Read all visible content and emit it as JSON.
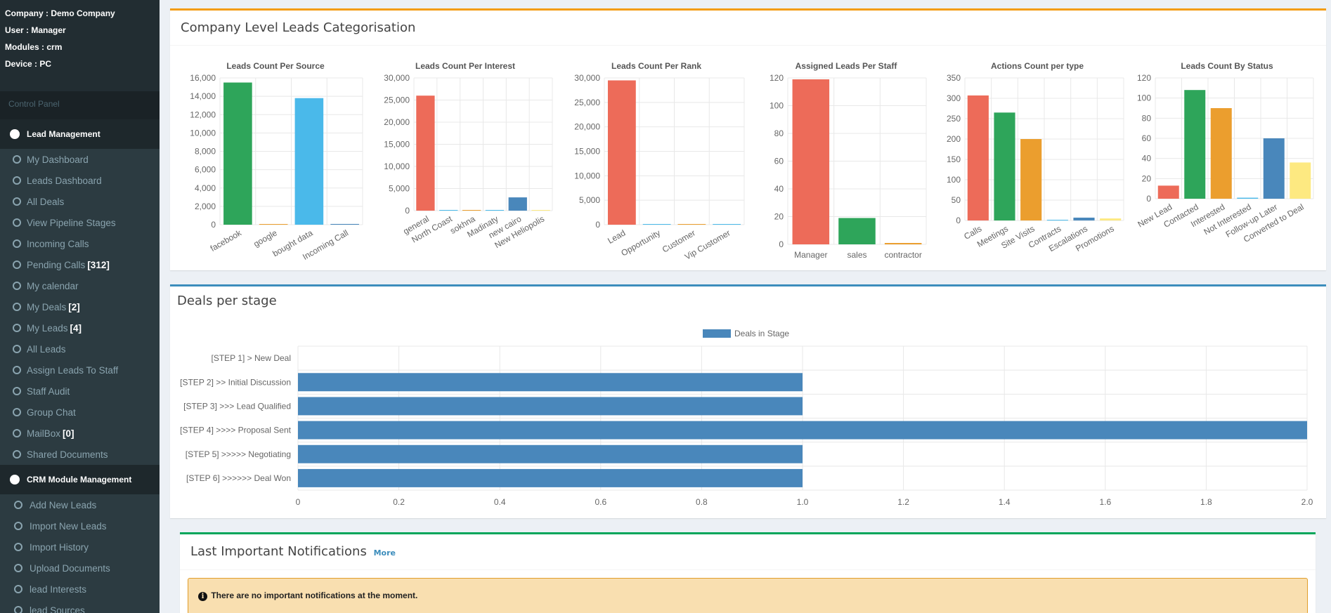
{
  "sidebar": {
    "info": [
      {
        "label": "Company : ",
        "value": "Demo Company"
      },
      {
        "label": "User : ",
        "value": "Manager"
      },
      {
        "label": "Modules : ",
        "value": "crm"
      },
      {
        "label": "Device : ",
        "value": "PC"
      }
    ],
    "header": "Control Panel",
    "section1": "Lead Management",
    "items1": [
      {
        "label": "My Dashboard",
        "badge": ""
      },
      {
        "label": "Leads Dashboard",
        "badge": ""
      },
      {
        "label": "All Deals",
        "badge": ""
      },
      {
        "label": "View Pipeline Stages",
        "badge": ""
      },
      {
        "label": "Incoming Calls",
        "badge": ""
      },
      {
        "label": "Pending Calls",
        "badge": "[312]"
      },
      {
        "label": "My calendar",
        "badge": ""
      },
      {
        "label": "My Deals",
        "badge": "[2]"
      },
      {
        "label": "My Leads",
        "badge": "[4]"
      },
      {
        "label": "All Leads",
        "badge": ""
      },
      {
        "label": "Assign Leads To Staff",
        "badge": ""
      },
      {
        "label": "Staff Audit",
        "badge": ""
      },
      {
        "label": "Group Chat",
        "badge": ""
      },
      {
        "label": "MailBox",
        "badge": "[0]"
      },
      {
        "label": "Shared Documents",
        "badge": ""
      }
    ],
    "section2": "CRM Module Management",
    "items2": [
      {
        "label": "Add New Leads"
      },
      {
        "label": "Import New Leads"
      },
      {
        "label": "Import History"
      },
      {
        "label": "Upload Documents"
      },
      {
        "label": "lead Interests"
      },
      {
        "label": "lead Sources"
      }
    ]
  },
  "leads_box": {
    "title": "Company Level Leads Categorisation"
  },
  "deals_box": {
    "title": "Deals per stage"
  },
  "notifications": {
    "title": "Last Important Notifications",
    "more": "More",
    "message": "There are no important notifications at the moment."
  },
  "colors": {
    "red": "#ed6b59",
    "green": "#2ea55a",
    "orange": "#eb9e2e",
    "blue": "#4987bb",
    "lightblue": "#4ab9ea",
    "yellow": "#fde981"
  },
  "chart_data": [
    {
      "type": "bar",
      "title": "Leads Count Per Source",
      "categories": [
        "facebook",
        "google",
        "bought data",
        "Incoming Call"
      ],
      "values": [
        15500,
        10,
        13800,
        80
      ],
      "colors": [
        "#2ea55a",
        "#eb9e2e",
        "#4ab9ea",
        "#4987bb"
      ],
      "yticks": [
        0,
        2000,
        4000,
        6000,
        8000,
        10000,
        12000,
        14000,
        16000
      ],
      "ylim": [
        0,
        16000
      ]
    },
    {
      "type": "bar",
      "title": "Leads Count Per Interest",
      "categories": [
        "general",
        "North Coast",
        "sokhna",
        "Madinaty",
        "new cairo",
        "New Heliopolis"
      ],
      "values": [
        26000,
        50,
        50,
        20,
        3000,
        10
      ],
      "colors": [
        "#ed6b59",
        "#4ab9ea",
        "#eb9e2e",
        "#4ab9ea",
        "#4987bb",
        "#fde981"
      ],
      "yticks": [
        0,
        5000,
        10000,
        15000,
        20000,
        25000,
        30000
      ],
      "ylim": [
        0,
        30000
      ]
    },
    {
      "type": "bar",
      "title": "Leads Count Per Rank",
      "categories": [
        "Lead",
        "Opportunity",
        "Customer",
        "Vip Customer"
      ],
      "values": [
        29500,
        30,
        30,
        30
      ],
      "colors": [
        "#ed6b59",
        "#4ab9ea",
        "#eb9e2e",
        "#4ab9ea"
      ],
      "yticks": [
        0,
        5000,
        10000,
        15000,
        20000,
        25000,
        30000
      ],
      "ylim": [
        0,
        30000
      ]
    },
    {
      "type": "bar",
      "title": "Assigned Leads Per Staff",
      "categories": [
        "Manager",
        "sales",
        "contractor"
      ],
      "values": [
        119,
        19,
        1
      ],
      "colors": [
        "#ed6b59",
        "#2ea55a",
        "#eb9e2e"
      ],
      "yticks": [
        0,
        20,
        40,
        60,
        80,
        100,
        120
      ],
      "ylim": [
        0,
        120
      ]
    },
    {
      "type": "bar",
      "title": "Actions Count per type",
      "categories": [
        "Calls",
        "Meetings",
        "Site Visits",
        "Contracts",
        "Escalations",
        "Promotions"
      ],
      "values": [
        307,
        265,
        200,
        0,
        7,
        5
      ],
      "colors": [
        "#ed6b59",
        "#2ea55a",
        "#eb9e2e",
        "#4ab9ea",
        "#4987bb",
        "#fde981"
      ],
      "yticks": [
        0,
        50,
        100,
        150,
        200,
        250,
        300,
        350
      ],
      "ylim": [
        0,
        350
      ]
    },
    {
      "type": "bar",
      "title": "Leads Count By Status",
      "categories": [
        "New Lead",
        "Contacted",
        "Interested",
        "Not Interested",
        "Follow-up Later",
        "Converted to Deal"
      ],
      "values": [
        13,
        108,
        90,
        1,
        60,
        36
      ],
      "colors": [
        "#ed6b59",
        "#2ea55a",
        "#eb9e2e",
        "#4ab9ea",
        "#4987bb",
        "#fde981"
      ],
      "yticks": [
        0,
        20,
        40,
        60,
        80,
        100,
        120
      ],
      "ylim": [
        0,
        120
      ]
    },
    {
      "type": "bar",
      "orientation": "horizontal",
      "legend": "Deals in Stage",
      "categories": [
        "[STEP 1] > New Deal",
        "[STEP 2] >> Initial Discussion",
        "[STEP 3] >>> Lead Qualified",
        "[STEP 4] >>>> Proposal Sent",
        "[STEP 5] >>>>> Negotiating",
        "[STEP 6] >>>>>> Deal Won"
      ],
      "values": [
        0,
        1,
        1,
        2,
        1,
        1
      ],
      "color": "#4987bb",
      "xticks": [
        "0",
        "0.2",
        "0.4",
        "0.6",
        "0.8",
        "1.0",
        "1.2",
        "1.4",
        "1.6",
        "1.8",
        "2.0"
      ],
      "xlim": [
        0,
        2
      ]
    }
  ]
}
